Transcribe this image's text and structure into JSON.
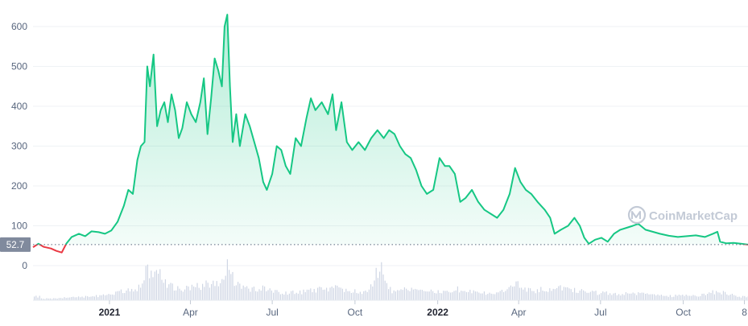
{
  "brand": "CoinMarketCap",
  "colors": {
    "up": "#16c784",
    "down": "#ea3943",
    "grid": "#eff2f5",
    "volume": "#cfd6e4",
    "last_price_badge": "#808a9d",
    "watermark": "#c3cad6"
  },
  "chart_data": {
    "type": "line",
    "title": "",
    "xlabel": "",
    "ylabel": "",
    "ylim": [
      0,
      640
    ],
    "yticks": [
      0,
      100,
      200,
      300,
      400,
      500,
      600
    ],
    "xticks": [
      {
        "date": "2021-01-01",
        "label": "2021",
        "bold": true
      },
      {
        "date": "2021-04-01",
        "label": "Apr",
        "bold": false
      },
      {
        "date": "2021-07-01",
        "label": "Jul",
        "bold": false
      },
      {
        "date": "2021-10-01",
        "label": "Oct",
        "bold": false
      },
      {
        "date": "2022-01-01",
        "label": "2022",
        "bold": true
      },
      {
        "date": "2022-04-01",
        "label": "Apr",
        "bold": false
      },
      {
        "date": "2022-07-01",
        "label": "Jul",
        "bold": false
      },
      {
        "date": "2022-10-01",
        "label": "Oct",
        "bold": false
      },
      {
        "date": "2022-12-08",
        "label": "8",
        "bold": false
      }
    ],
    "xlim": [
      "2020-10-08",
      "2022-12-12"
    ],
    "last_price": 52.7,
    "last_price_label": "52.7",
    "grid": true,
    "series": [
      {
        "color_above_baseline": "#16c784",
        "color_below_baseline": "#ea3943",
        "points": [
          [
            "2020-10-08",
            46
          ],
          [
            "2020-10-14",
            55
          ],
          [
            "2020-10-20",
            47
          ],
          [
            "2020-10-28",
            43
          ],
          [
            "2020-11-03",
            37
          ],
          [
            "2020-11-09",
            33
          ],
          [
            "2020-11-14",
            55
          ],
          [
            "2020-11-20",
            72
          ],
          [
            "2020-11-28",
            80
          ],
          [
            "2020-12-05",
            74
          ],
          [
            "2020-12-12",
            86
          ],
          [
            "2020-12-20",
            84
          ],
          [
            "2020-12-27",
            80
          ],
          [
            "2021-01-03",
            88
          ],
          [
            "2021-01-10",
            110
          ],
          [
            "2021-01-17",
            150
          ],
          [
            "2021-01-22",
            190
          ],
          [
            "2021-01-27",
            180
          ],
          [
            "2021-02-01",
            265
          ],
          [
            "2021-02-05",
            300
          ],
          [
            "2021-02-09",
            310
          ],
          [
            "2021-02-12",
            500
          ],
          [
            "2021-02-15",
            450
          ],
          [
            "2021-02-19",
            530
          ],
          [
            "2021-02-23",
            350
          ],
          [
            "2021-02-27",
            390
          ],
          [
            "2021-03-03",
            410
          ],
          [
            "2021-03-07",
            360
          ],
          [
            "2021-03-11",
            430
          ],
          [
            "2021-03-15",
            390
          ],
          [
            "2021-03-19",
            320
          ],
          [
            "2021-03-23",
            345
          ],
          [
            "2021-03-28",
            410
          ],
          [
            "2021-04-02",
            380
          ],
          [
            "2021-04-07",
            360
          ],
          [
            "2021-04-12",
            410
          ],
          [
            "2021-04-16",
            470
          ],
          [
            "2021-04-20",
            330
          ],
          [
            "2021-04-24",
            420
          ],
          [
            "2021-04-28",
            520
          ],
          [
            "2021-05-02",
            490
          ],
          [
            "2021-05-06",
            450
          ],
          [
            "2021-05-09",
            600
          ],
          [
            "2021-05-12",
            630
          ],
          [
            "2021-05-15",
            450
          ],
          [
            "2021-05-18",
            310
          ],
          [
            "2021-05-22",
            380
          ],
          [
            "2021-05-26",
            300
          ],
          [
            "2021-06-01",
            380
          ],
          [
            "2021-06-06",
            350
          ],
          [
            "2021-06-11",
            310
          ],
          [
            "2021-06-16",
            270
          ],
          [
            "2021-06-21",
            210
          ],
          [
            "2021-06-25",
            190
          ],
          [
            "2021-07-01",
            230
          ],
          [
            "2021-07-06",
            300
          ],
          [
            "2021-07-11",
            290
          ],
          [
            "2021-07-16",
            250
          ],
          [
            "2021-07-21",
            230
          ],
          [
            "2021-07-27",
            320
          ],
          [
            "2021-08-02",
            300
          ],
          [
            "2021-08-08",
            370
          ],
          [
            "2021-08-13",
            420
          ],
          [
            "2021-08-18",
            390
          ],
          [
            "2021-08-25",
            410
          ],
          [
            "2021-09-01",
            380
          ],
          [
            "2021-09-06",
            430
          ],
          [
            "2021-09-10",
            340
          ],
          [
            "2021-09-16",
            410
          ],
          [
            "2021-09-22",
            310
          ],
          [
            "2021-09-28",
            290
          ],
          [
            "2021-10-05",
            310
          ],
          [
            "2021-10-12",
            290
          ],
          [
            "2021-10-19",
            320
          ],
          [
            "2021-10-26",
            340
          ],
          [
            "2021-11-02",
            320
          ],
          [
            "2021-11-08",
            340
          ],
          [
            "2021-11-14",
            330
          ],
          [
            "2021-11-20",
            300
          ],
          [
            "2021-11-26",
            280
          ],
          [
            "2021-12-02",
            270
          ],
          [
            "2021-12-08",
            240
          ],
          [
            "2021-12-14",
            200
          ],
          [
            "2021-12-20",
            180
          ],
          [
            "2021-12-27",
            190
          ],
          [
            "2022-01-03",
            270
          ],
          [
            "2022-01-09",
            250
          ],
          [
            "2022-01-14",
            250
          ],
          [
            "2022-01-20",
            230
          ],
          [
            "2022-01-26",
            160
          ],
          [
            "2022-02-01",
            170
          ],
          [
            "2022-02-08",
            190
          ],
          [
            "2022-02-15",
            160
          ],
          [
            "2022-02-22",
            140
          ],
          [
            "2022-03-01",
            130
          ],
          [
            "2022-03-08",
            120
          ],
          [
            "2022-03-15",
            140
          ],
          [
            "2022-03-22",
            180
          ],
          [
            "2022-03-28",
            245
          ],
          [
            "2022-04-03",
            210
          ],
          [
            "2022-04-09",
            190
          ],
          [
            "2022-04-15",
            180
          ],
          [
            "2022-04-22",
            160
          ],
          [
            "2022-04-30",
            140
          ],
          [
            "2022-05-06",
            120
          ],
          [
            "2022-05-11",
            80
          ],
          [
            "2022-05-18",
            90
          ],
          [
            "2022-05-26",
            100
          ],
          [
            "2022-06-02",
            120
          ],
          [
            "2022-06-08",
            100
          ],
          [
            "2022-06-13",
            70
          ],
          [
            "2022-06-18",
            55
          ],
          [
            "2022-06-25",
            65
          ],
          [
            "2022-07-02",
            70
          ],
          [
            "2022-07-09",
            60
          ],
          [
            "2022-07-16",
            80
          ],
          [
            "2022-07-23",
            90
          ],
          [
            "2022-07-30",
            95
          ],
          [
            "2022-08-06",
            100
          ],
          [
            "2022-08-12",
            105
          ],
          [
            "2022-08-20",
            90
          ],
          [
            "2022-08-28",
            85
          ],
          [
            "2022-09-05",
            80
          ],
          [
            "2022-09-15",
            75
          ],
          [
            "2022-09-25",
            72
          ],
          [
            "2022-10-05",
            74
          ],
          [
            "2022-10-15",
            76
          ],
          [
            "2022-10-25",
            72
          ],
          [
            "2022-11-03",
            80
          ],
          [
            "2022-11-08",
            85
          ],
          [
            "2022-11-11",
            60
          ],
          [
            "2022-11-18",
            56
          ],
          [
            "2022-11-26",
            57
          ],
          [
            "2022-12-04",
            55
          ],
          [
            "2022-12-12",
            52.7
          ]
        ]
      }
    ],
    "volume": {
      "max_value": 1,
      "points": [
        [
          "2020-10-15",
          0.04
        ],
        [
          "2020-11-01",
          0.05
        ],
        [
          "2020-11-20",
          0.08
        ],
        [
          "2020-12-10",
          0.1
        ],
        [
          "2021-01-01",
          0.14
        ],
        [
          "2021-01-20",
          0.3
        ],
        [
          "2021-02-05",
          0.35
        ],
        [
          "2021-02-12",
          0.9
        ],
        [
          "2021-02-18",
          0.6
        ],
        [
          "2021-02-22",
          0.9
        ],
        [
          "2021-03-05",
          0.45
        ],
        [
          "2021-03-20",
          0.3
        ],
        [
          "2021-04-05",
          0.35
        ],
        [
          "2021-04-20",
          0.45
        ],
        [
          "2021-05-05",
          0.55
        ],
        [
          "2021-05-10",
          0.95
        ],
        [
          "2021-05-13",
          0.95
        ],
        [
          "2021-05-20",
          0.5
        ],
        [
          "2021-06-05",
          0.3
        ],
        [
          "2021-06-22",
          0.35
        ],
        [
          "2021-07-10",
          0.2
        ],
        [
          "2021-08-01",
          0.22
        ],
        [
          "2021-08-20",
          0.3
        ],
        [
          "2021-09-07",
          0.35
        ],
        [
          "2021-09-25",
          0.25
        ],
        [
          "2021-10-15",
          0.22
        ],
        [
          "2021-10-28",
          0.95
        ],
        [
          "2021-11-10",
          0.25
        ],
        [
          "2021-12-05",
          0.3
        ],
        [
          "2022-01-01",
          0.22
        ],
        [
          "2022-01-22",
          0.3
        ],
        [
          "2022-02-15",
          0.2
        ],
        [
          "2022-03-10",
          0.2
        ],
        [
          "2022-03-28",
          0.5
        ],
        [
          "2022-04-15",
          0.25
        ],
        [
          "2022-05-11",
          0.35
        ],
        [
          "2022-06-15",
          0.22
        ],
        [
          "2022-07-15",
          0.18
        ],
        [
          "2022-08-15",
          0.18
        ],
        [
          "2022-09-15",
          0.12
        ],
        [
          "2022-10-15",
          0.12
        ],
        [
          "2022-11-09",
          0.25
        ],
        [
          "2022-12-01",
          0.1
        ]
      ]
    }
  }
}
